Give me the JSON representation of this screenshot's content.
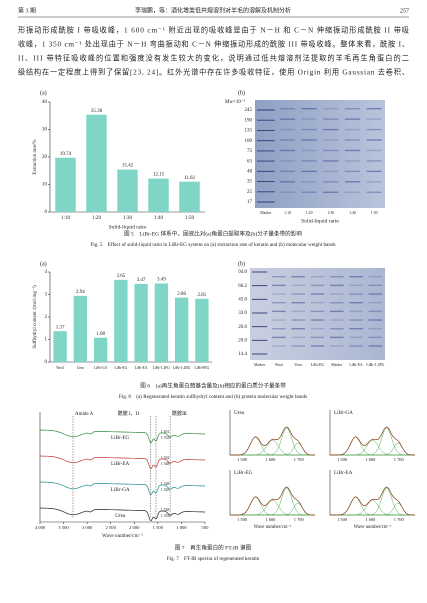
{
  "header": {
    "issue": "第 3 期",
    "running_title": "李瑞鹏，等：酒化增类低共熔溶剂对羊毛的溶解及机制分析",
    "page": "257"
  },
  "body": {
    "lines": [
      "形振动形成酰胺 I 带吸收峰，1 600 cm⁻¹ 附近出现的吸收峰是由于 N－H 和 C－N 伸缩振动形成酰胺 II 带吸",
      "收峰，1 350 cm⁻¹ 处出现由于 N－H 弯曲振动和 C－N 伸缩振动形成的酰胺 III 带吸收峰。整体来看，酰胺 I、",
      "II、III 带特征吸收峰的位置和强度没有发生较大的变化，说明通过低共熔溶剂法提取的羊毛再生角蛋白的二",
      "级结构在一定程度上得到了保留[23, 24]。红外光谱中存在许多吸收特征，使用 Origin 利用 Gaussian 去卷积、"
    ]
  },
  "chart_data": [
    {
      "type": "bar",
      "panel": "(a)",
      "ylabel": "Extraction rate/%",
      "xlabel": "Solid-liquid ratio",
      "categories": [
        "1:10",
        "1:20",
        "1:30",
        "1:40",
        "1:50"
      ],
      "values": [
        19.74,
        35.38,
        15.42,
        12.15,
        11.02
      ],
      "color": "#7fd6c7",
      "ylim": [
        0,
        40
      ],
      "yticks": [
        0,
        10,
        20,
        30,
        40
      ]
    },
    {
      "type": "bar",
      "panel": "(a)",
      "ylabel": "Sulfhydryl content /(mol·mg⁻¹)",
      "categories": [
        "Wool",
        "Urea",
        "LiBr-GA",
        "LiBr-EG",
        "LiBr-EA",
        "LiBr-1,3PG",
        "LiBr-1,4BG",
        "LiBr-PEG"
      ],
      "values": [
        1.37,
        2.94,
        1.08,
        3.65,
        3.47,
        3.49,
        2.86,
        2.81
      ],
      "color": "#7fd6c7",
      "ylim": [
        0,
        4
      ],
      "yticks": [
        0,
        1,
        2,
        3,
        4
      ]
    }
  ],
  "gels": [
    {
      "panel": "(b)",
      "unit": "Mw×10⁻³",
      "markers": [
        "245",
        "190",
        "135",
        "100",
        "75",
        "63",
        "48",
        "35",
        "25",
        "17"
      ],
      "lanes": [
        "Marker",
        "1:10",
        "1:20",
        "1:30",
        "1:40",
        "1:50"
      ],
      "xlabel": "Solid-liquid ratio"
    },
    {
      "panel": "(b)",
      "markers": [
        "94.0",
        "66.2",
        "45.0",
        "33.0",
        "26.0",
        "20.0",
        "14.4"
      ],
      "lanes": [
        "Marker",
        "Wool",
        "Urea",
        "LiBr-EG",
        "Marker",
        "LiBr-EA",
        "LiBr-1,3PG"
      ]
    }
  ],
  "fig7": {
    "bands": [
      "Amide A",
      "酰胺 I、II",
      "酰胺Ⅲ"
    ],
    "samples": [
      "LiBr-EG",
      "LiBr-EA",
      "LiBr-GA",
      "Urea"
    ],
    "peaks": [
      "1 651",
      "1 533",
      "1 632",
      "1 548",
      "1 548",
      "1 545",
      "1 548",
      "1 533"
    ],
    "xticks": [
      "4 000",
      "3 500",
      "3 000",
      "2 500",
      "2 000",
      "1 500",
      "1 000",
      "500"
    ],
    "xlabel": "Wave number/cm⁻¹",
    "panels": [
      "Urea",
      "LiBr-GA",
      "LiBr-EG",
      "LiBr-EA"
    ],
    "panel_xticks": [
      "1 500",
      "1 600",
      "1 700"
    ],
    "panel_xlabel": "Wave number/cm⁻¹"
  },
  "captions": [
    {
      "cn": "图 5　LiBr-EG 体系中，固液比对(a)角蛋白提取率及(b)分子量条带的影响",
      "en": "Fig. 5　Effect of solid-liquid ratio in LiBr-EG system on (a) extraction rate of keratin and (b) molecular weight bands"
    },
    {
      "cn": "图 6　(a)再生角蛋白巯基含量及(b)相应的蛋白质分子量条带",
      "en": "Fig. 6　(a) Regenerated keratin sulfhydryl content and (b) protein molecular weight bands"
    },
    {
      "cn": "图 7　再生角蛋白的 FT-IR 谱图",
      "en": "Fig. 7　FT-IR spectra of regenerated keratin"
    }
  ]
}
